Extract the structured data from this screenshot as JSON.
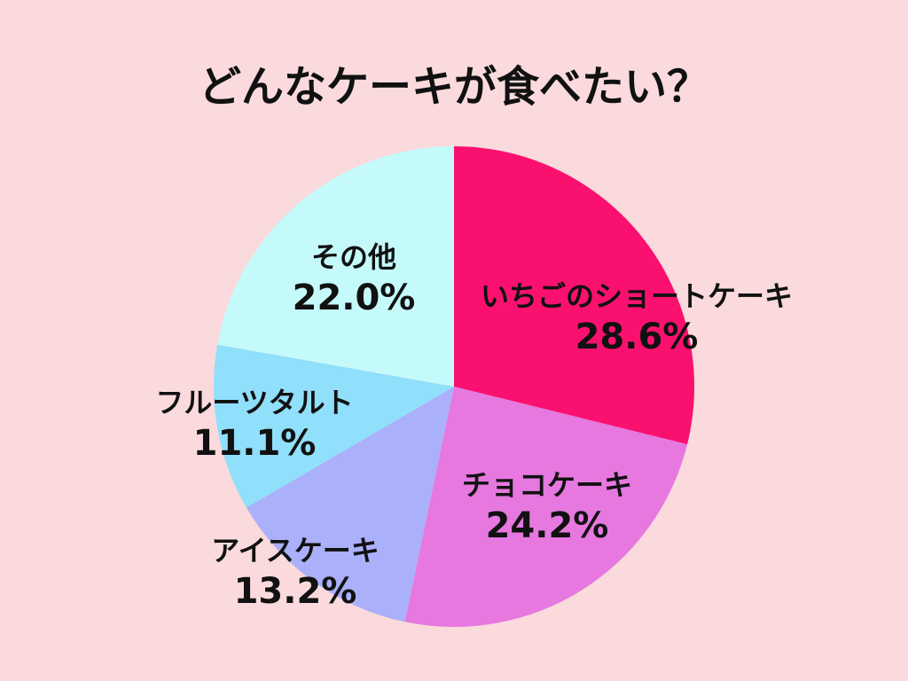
{
  "page": {
    "background_color": "#FADADC",
    "text_color": "#111111"
  },
  "chart_data": {
    "type": "pie",
    "title": "どんなケーキが食べたい？",
    "categories": [
      "いちごのショートケーキ",
      "チョコケーキ",
      "アイスケーキ",
      "フルーツタルト",
      "その他"
    ],
    "values": [
      28.6,
      24.2,
      13.2,
      11.1,
      22.0
    ],
    "percent_labels": [
      "28.6%",
      "24.2%",
      "13.2%",
      "11.1%",
      "22.0%"
    ],
    "unit": "%",
    "colors": [
      "#FA1170",
      "#E678E0",
      "#ABB0FA",
      "#90DFFB",
      "#C5FAFA"
    ],
    "start_angle_deg": 0,
    "direction": "clockwise",
    "legend": "none",
    "labels_on_slices": true
  }
}
